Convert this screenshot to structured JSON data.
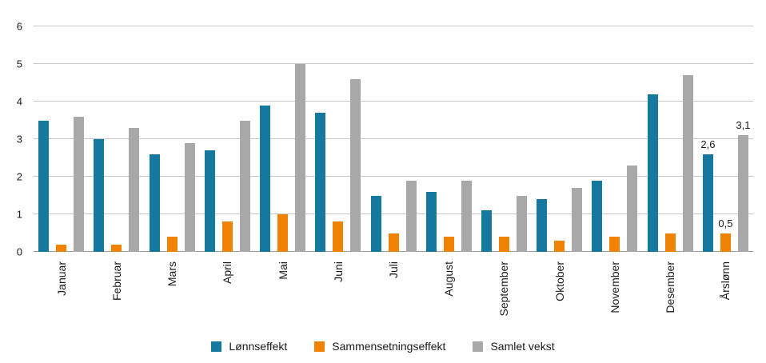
{
  "chart_data": {
    "type": "bar",
    "title": "",
    "xlabel": "",
    "ylabel": "",
    "ylim": [
      0,
      6
    ],
    "y_ticks": [
      "0",
      "1",
      "2",
      "3",
      "4",
      "5",
      "6"
    ],
    "grid": true,
    "legend_position": "bottom",
    "categories": [
      "Januar",
      "Februar",
      "Mars",
      "April",
      "Mai",
      "Juni",
      "Juli",
      "August",
      "September",
      "Oktober",
      "November",
      "Desember",
      "Årslønn"
    ],
    "series": [
      {
        "name": "Lønnseffekt",
        "color": "#15789f",
        "values": [
          3.5,
          3.0,
          2.6,
          2.7,
          3.9,
          3.7,
          1.5,
          1.6,
          1.1,
          1.4,
          1.9,
          4.2,
          2.6
        ]
      },
      {
        "name": "Sammensetningseffekt",
        "color": "#ef8200",
        "values": [
          0.2,
          0.2,
          0.4,
          0.8,
          1.0,
          0.8,
          0.5,
          0.4,
          0.4,
          0.3,
          0.4,
          0.5,
          0.5
        ]
      },
      {
        "name": "Samlet vekst",
        "color": "#a8a8a8",
        "values": [
          3.6,
          3.3,
          2.9,
          3.5,
          5.0,
          4.6,
          1.9,
          1.9,
          1.5,
          1.7,
          2.3,
          4.7,
          3.1
        ]
      }
    ],
    "bar_labels": {
      "Årslønn": [
        "2,6",
        "0,5",
        "3,1"
      ]
    }
  }
}
